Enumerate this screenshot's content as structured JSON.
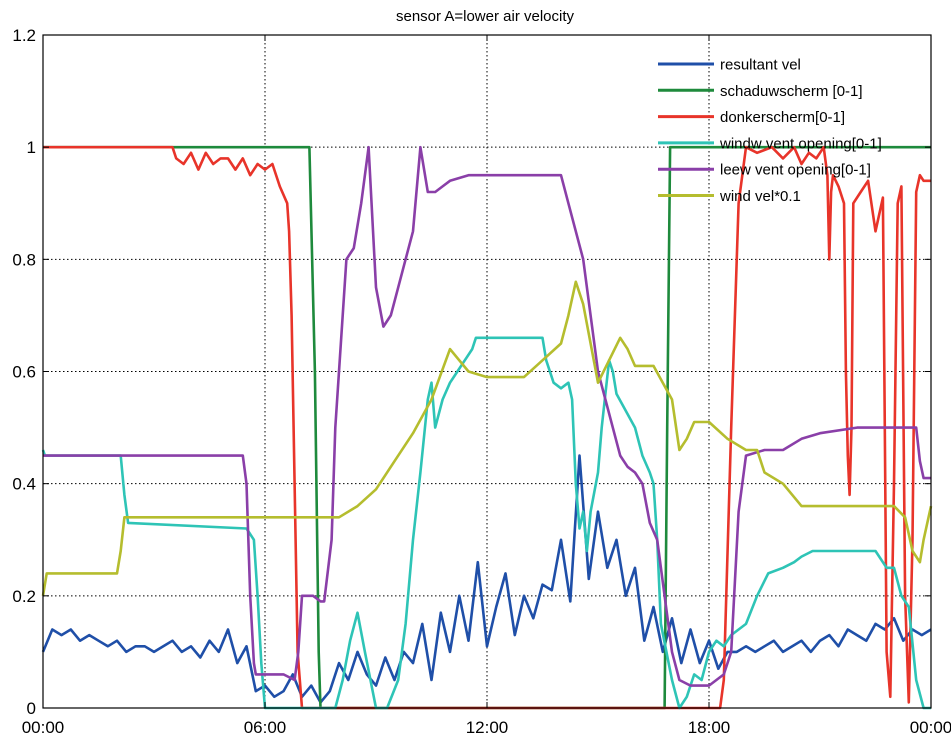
{
  "chart_data": {
    "type": "line",
    "title": "sensor A=lower air velocity",
    "xlabel": "",
    "ylabel": "",
    "xlim": [
      0,
      24
    ],
    "ylim": [
      0,
      1.2
    ],
    "x_ticks": [
      0,
      6,
      12,
      18,
      24
    ],
    "x_tick_labels": [
      "00:00",
      "06:00",
      "12:00",
      "18:00",
      "00:00"
    ],
    "y_ticks": [
      0,
      0.2,
      0.4,
      0.6,
      0.8,
      1,
      1.2
    ],
    "y_tick_labels": [
      "0",
      "0.2",
      "0.4",
      "0.6",
      "0.8",
      "1",
      "1.2"
    ],
    "grid": true,
    "grid_style": "dotted",
    "legend_position": "top-right",
    "series": [
      {
        "name": "resultant vel",
        "color": "#1f4fa8",
        "x": [
          0,
          0.25,
          0.5,
          0.75,
          1,
          1.25,
          1.5,
          1.75,
          2,
          2.25,
          2.5,
          2.75,
          3,
          3.25,
          3.5,
          3.75,
          4,
          4.25,
          4.5,
          4.75,
          5,
          5.25,
          5.5,
          5.75,
          6,
          6.25,
          6.5,
          6.75,
          7,
          7.25,
          7.5,
          7.75,
          8,
          8.25,
          8.5,
          8.75,
          9,
          9.25,
          9.5,
          9.75,
          10,
          10.25,
          10.5,
          10.75,
          11,
          11.25,
          11.5,
          11.75,
          12,
          12.25,
          12.5,
          12.75,
          13,
          13.25,
          13.5,
          13.75,
          14,
          14.25,
          14.5,
          14.75,
          15,
          15.25,
          15.5,
          15.75,
          16,
          16.25,
          16.5,
          16.75,
          17,
          17.25,
          17.5,
          17.75,
          18,
          18.25,
          18.5,
          18.75,
          19,
          19.25,
          19.5,
          19.75,
          20,
          20.25,
          20.5,
          20.75,
          21,
          21.25,
          21.5,
          21.75,
          22,
          22.25,
          22.5,
          22.75,
          23,
          23.25,
          23.5,
          23.75,
          24
        ],
        "y": [
          0.1,
          0.14,
          0.13,
          0.14,
          0.12,
          0.13,
          0.12,
          0.11,
          0.12,
          0.1,
          0.11,
          0.11,
          0.1,
          0.11,
          0.12,
          0.1,
          0.11,
          0.09,
          0.12,
          0.1,
          0.14,
          0.08,
          0.11,
          0.03,
          0.04,
          0.02,
          0.03,
          0.06,
          0.02,
          0.04,
          0.01,
          0.03,
          0.08,
          0.05,
          0.1,
          0.06,
          0.04,
          0.09,
          0.05,
          0.1,
          0.08,
          0.15,
          0.05,
          0.17,
          0.1,
          0.2,
          0.12,
          0.26,
          0.11,
          0.18,
          0.24,
          0.13,
          0.2,
          0.16,
          0.22,
          0.21,
          0.3,
          0.19,
          0.45,
          0.23,
          0.35,
          0.25,
          0.3,
          0.2,
          0.25,
          0.12,
          0.18,
          0.1,
          0.16,
          0.08,
          0.14,
          0.08,
          0.12,
          0.07,
          0.1,
          0.1,
          0.11,
          0.1,
          0.11,
          0.12,
          0.1,
          0.11,
          0.12,
          0.1,
          0.12,
          0.13,
          0.11,
          0.14,
          0.13,
          0.12,
          0.15,
          0.14,
          0.16,
          0.12,
          0.14,
          0.13,
          0.14
        ]
      },
      {
        "name": "schaduwscherm [0-1]",
        "color": "#1e8a3c",
        "x": [
          0,
          7.2,
          7.35,
          7.45,
          7.5,
          16.8,
          16.87,
          16.95,
          24
        ],
        "y": [
          1,
          1,
          0.6,
          0.1,
          0,
          0,
          0.5,
          1,
          1
        ]
      },
      {
        "name": "donkerscherm[0-1]",
        "color": "#e8342a",
        "x": [
          0,
          3.5,
          3.6,
          3.8,
          4.0,
          4.2,
          4.4,
          4.6,
          4.8,
          5.0,
          5.2,
          5.4,
          5.6,
          5.8,
          6.0,
          6.2,
          6.4,
          6.6,
          6.65,
          6.72,
          6.8,
          6.88,
          7.0,
          18.3,
          18.4,
          18.6,
          18.8,
          19.0,
          19.3,
          19.7,
          20.0,
          20.3,
          20.5,
          20.7,
          20.9,
          21.1,
          21.2,
          21.25,
          21.3,
          21.35,
          21.5,
          21.65,
          21.7,
          21.75,
          21.8,
          21.85,
          21.9,
          22.1,
          22.3,
          22.5,
          22.7,
          22.75,
          22.8,
          22.9,
          23.0,
          23.1,
          23.2,
          23.3,
          23.4,
          23.5,
          23.6,
          23.7,
          23.8,
          24
        ],
        "y": [
          1,
          1,
          0.98,
          0.97,
          0.99,
          0.96,
          0.99,
          0.97,
          0.98,
          0.98,
          0.96,
          0.98,
          0.95,
          0.97,
          0.96,
          0.97,
          0.93,
          0.9,
          0.85,
          0.7,
          0.4,
          0.1,
          0,
          0,
          0.05,
          0.5,
          0.9,
          1,
          0.99,
          1,
          0.98,
          1,
          0.97,
          0.99,
          0.98,
          1,
          0.95,
          0.8,
          0.92,
          0.95,
          0.93,
          0.9,
          0.6,
          0.45,
          0.38,
          0.5,
          0.9,
          0.92,
          0.94,
          0.85,
          0.91,
          0.5,
          0.1,
          0.02,
          0.4,
          0.9,
          0.93,
          0.2,
          0.01,
          0.3,
          0.92,
          0.95,
          0.94,
          0.94
        ]
      },
      {
        "name": "windw vent opening[0-1]",
        "color": "#2ec4b6",
        "x": [
          0,
          0.05,
          2.1,
          2.2,
          2.3,
          5.5,
          5.7,
          5.8,
          5.9,
          6.0,
          7.9,
          8.1,
          8.3,
          8.5,
          8.7,
          9.0,
          9.3,
          9.6,
          9.8,
          10.0,
          10.2,
          10.4,
          10.5,
          10.6,
          10.8,
          11.0,
          11.2,
          11.4,
          11.6,
          11.7,
          13.5,
          13.6,
          13.8,
          14.0,
          14.2,
          14.3,
          14.4,
          14.5,
          14.6,
          14.7,
          14.8,
          15.0,
          15.1,
          15.2,
          15.3,
          15.4,
          15.5,
          16.0,
          16.2,
          16.4,
          16.5,
          16.6,
          16.7,
          17.0,
          17.2,
          17.4,
          17.6,
          17.8,
          18.0,
          18.2,
          18.4,
          18.6,
          19.0,
          19.3,
          19.6,
          20.0,
          20.3,
          20.5,
          20.8,
          21.0,
          22.5,
          22.8,
          23.0,
          23.2,
          23.4,
          23.6,
          23.8,
          24
        ],
        "y": [
          0.46,
          0.45,
          0.45,
          0.38,
          0.33,
          0.32,
          0.3,
          0.2,
          0.08,
          0.0,
          0.0,
          0.05,
          0.12,
          0.17,
          0.1,
          0.0,
          0.0,
          0.05,
          0.15,
          0.3,
          0.42,
          0.55,
          0.58,
          0.5,
          0.55,
          0.58,
          0.6,
          0.62,
          0.64,
          0.66,
          0.66,
          0.62,
          0.58,
          0.57,
          0.58,
          0.55,
          0.4,
          0.32,
          0.35,
          0.28,
          0.35,
          0.42,
          0.5,
          0.56,
          0.62,
          0.6,
          0.56,
          0.5,
          0.45,
          0.42,
          0.4,
          0.3,
          0.15,
          0.05,
          0.0,
          0.02,
          0.06,
          0.05,
          0.1,
          0.12,
          0.11,
          0.13,
          0.15,
          0.2,
          0.24,
          0.25,
          0.26,
          0.27,
          0.28,
          0.28,
          0.28,
          0.25,
          0.25,
          0.2,
          0.18,
          0.05,
          0.0,
          0.0
        ]
      },
      {
        "name": "leew vent opening[0-1]",
        "color": "#8a3fa8",
        "x": [
          0,
          5.4,
          5.5,
          5.6,
          5.7,
          5.75,
          6.5,
          6.8,
          6.9,
          7.0,
          7.3,
          7.5,
          7.6,
          7.8,
          7.9,
          8.0,
          8.2,
          8.4,
          8.6,
          8.8,
          9.0,
          9.2,
          9.4,
          9.6,
          9.8,
          10.0,
          10.2,
          10.4,
          10.6,
          10.8,
          11.0,
          11.5,
          12.0,
          13.0,
          14.0,
          14.2,
          14.4,
          14.6,
          14.8,
          15.0,
          15.2,
          15.4,
          15.6,
          15.8,
          16.0,
          16.2,
          16.4,
          16.6,
          16.8,
          17.0,
          17.2,
          17.5,
          18.0,
          18.2,
          18.4,
          18.6,
          18.8,
          19.0,
          19.5,
          20.0,
          20.5,
          21.0,
          22.0,
          23.0,
          23.6,
          23.7,
          23.8,
          24
        ],
        "y": [
          0.45,
          0.45,
          0.4,
          0.2,
          0.08,
          0.06,
          0.06,
          0.05,
          0.1,
          0.2,
          0.2,
          0.19,
          0.19,
          0.3,
          0.5,
          0.6,
          0.8,
          0.82,
          0.9,
          1.0,
          0.75,
          0.68,
          0.7,
          0.75,
          0.8,
          0.85,
          1.0,
          0.92,
          0.92,
          0.93,
          0.94,
          0.95,
          0.95,
          0.95,
          0.95,
          0.9,
          0.85,
          0.8,
          0.7,
          0.6,
          0.55,
          0.5,
          0.45,
          0.43,
          0.42,
          0.4,
          0.33,
          0.3,
          0.2,
          0.1,
          0.05,
          0.04,
          0.04,
          0.05,
          0.06,
          0.1,
          0.35,
          0.45,
          0.46,
          0.46,
          0.48,
          0.49,
          0.5,
          0.5,
          0.5,
          0.44,
          0.41,
          0.41
        ]
      },
      {
        "name": "wind vel*0.1",
        "color": "#b5bd2e",
        "x": [
          0,
          0.1,
          2.0,
          2.1,
          2.2,
          8.0,
          8.5,
          9.0,
          9.5,
          10.0,
          10.5,
          11.0,
          11.5,
          12.0,
          13.0,
          13.5,
          14.0,
          14.2,
          14.4,
          14.6,
          14.8,
          15.0,
          15.3,
          15.6,
          15.8,
          16.0,
          16.5,
          17.0,
          17.2,
          17.4,
          17.6,
          18.0,
          18.5,
          19.0,
          19.3,
          19.5,
          20.0,
          20.5,
          21.0,
          22.0,
          23.0,
          23.3,
          23.5,
          23.7,
          23.8,
          24
        ],
        "y": [
          0.2,
          0.24,
          0.24,
          0.28,
          0.34,
          0.34,
          0.36,
          0.39,
          0.44,
          0.49,
          0.55,
          0.64,
          0.6,
          0.59,
          0.59,
          0.62,
          0.65,
          0.7,
          0.76,
          0.72,
          0.65,
          0.58,
          0.62,
          0.66,
          0.64,
          0.61,
          0.61,
          0.55,
          0.46,
          0.48,
          0.51,
          0.51,
          0.48,
          0.46,
          0.46,
          0.42,
          0.4,
          0.36,
          0.36,
          0.36,
          0.36,
          0.34,
          0.28,
          0.26,
          0.3,
          0.36
        ]
      }
    ]
  }
}
